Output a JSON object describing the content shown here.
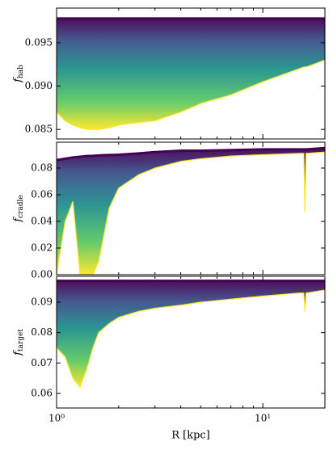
{
  "chart_data": [
    {
      "type": "band",
      "ylabel": "f",
      "ylabel_sub": "hab",
      "xscale": "log",
      "xlim": [
        1,
        20
      ],
      "xticks": [
        1,
        10
      ],
      "xminorticks": [
        2,
        3,
        4,
        5,
        6,
        7,
        8,
        9,
        20
      ],
      "ylim": [
        0.0839,
        0.099
      ],
      "yticks": [
        0.085,
        {
          "value": 0.09,
          "label": "0.090"
        },
        0.095
      ],
      "x": [
        1,
        1.1,
        1.2,
        1.3,
        1.4,
        1.5,
        1.6,
        1.8,
        2,
        2.5,
        3,
        4,
        5,
        7,
        10,
        15,
        15.8,
        16,
        16.2,
        20
      ],
      "series": [
        {
          "color": "#440154",
          "values": [
            0.0978,
            0.0978,
            0.0978,
            0.0978,
            0.0978,
            0.0978,
            0.0978,
            0.0978,
            0.0978,
            0.0978,
            0.0978,
            0.0978,
            0.0978,
            0.0978,
            0.0978,
            0.0978,
            0.0978,
            0.0978,
            0.0978,
            0.0978
          ]
        },
        {
          "color": "#fde725",
          "values": [
            0.087,
            0.086,
            0.0855,
            0.0852,
            0.085,
            0.085,
            0.085,
            0.0852,
            0.0855,
            0.0858,
            0.086,
            0.087,
            0.088,
            0.089,
            0.0905,
            0.092,
            0.0922,
            0.0922,
            0.0922,
            0.093
          ]
        }
      ]
    },
    {
      "type": "band",
      "ylabel": "f",
      "ylabel_sub": "cradle",
      "xscale": "log",
      "xlim": [
        1,
        20
      ],
      "xticks": [
        1,
        10
      ],
      "xminorticks": [
        2,
        3,
        4,
        5,
        6,
        7,
        8,
        9,
        20
      ],
      "ylim": [
        0,
        0.0994
      ],
      "yticks": [
        {
          "value": 0,
          "label": "0.00"
        },
        0.02,
        0.04,
        0.06,
        0.08
      ],
      "x": [
        1,
        1.1,
        1.2,
        1.3,
        1.4,
        1.5,
        1.6,
        1.8,
        2,
        2.5,
        3,
        4,
        5,
        7,
        10,
        15,
        15.8,
        16,
        16.2,
        20
      ],
      "series": [
        {
          "color": "#440154",
          "values": [
            0.086,
            0.087,
            0.088,
            0.0885,
            0.089,
            0.0892,
            0.0895,
            0.0898,
            0.09,
            0.091,
            0.092,
            0.093,
            0.093,
            0.0935,
            0.094,
            0.094,
            0.094,
            0.094,
            0.094,
            0.095
          ]
        },
        {
          "color": "#fde725",
          "values": [
            0.0,
            0.04,
            0.055,
            0.0,
            0.0,
            0.0,
            0.01,
            0.05,
            0.065,
            0.075,
            0.08,
            0.085,
            0.087,
            0.089,
            0.09,
            0.091,
            0.091,
            0.047,
            0.091,
            0.092
          ]
        }
      ]
    },
    {
      "type": "band",
      "ylabel": "f",
      "ylabel_sub": "target",
      "xlabel": "R [kpc]",
      "xscale": "log",
      "xlim": [
        1,
        20
      ],
      "xticks": [
        {
          "value": 1,
          "label": "10⁰"
        },
        {
          "value": 10,
          "label": "10¹"
        }
      ],
      "xminorticks": [
        2,
        3,
        4,
        5,
        6,
        7,
        8,
        9,
        20
      ],
      "ylim": [
        0.0552,
        0.0985
      ],
      "yticks": [
        0.06,
        0.07,
        0.08,
        0.09
      ],
      "x": [
        1,
        1.1,
        1.2,
        1.3,
        1.4,
        1.5,
        1.6,
        1.8,
        2,
        2.5,
        3,
        4,
        5,
        7,
        10,
        15,
        15.8,
        16,
        16.2,
        20
      ],
      "series": [
        {
          "color": "#440154",
          "values": [
            0.097,
            0.097,
            0.097,
            0.097,
            0.097,
            0.097,
            0.097,
            0.097,
            0.097,
            0.097,
            0.097,
            0.097,
            0.097,
            0.097,
            0.097,
            0.097,
            0.097,
            0.097,
            0.097,
            0.097
          ]
        },
        {
          "color": "#fde725",
          "values": [
            0.075,
            0.072,
            0.065,
            0.062,
            0.068,
            0.075,
            0.08,
            0.083,
            0.085,
            0.087,
            0.088,
            0.089,
            0.09,
            0.091,
            0.092,
            0.093,
            0.093,
            0.087,
            0.093,
            0.094
          ]
        }
      ]
    }
  ]
}
